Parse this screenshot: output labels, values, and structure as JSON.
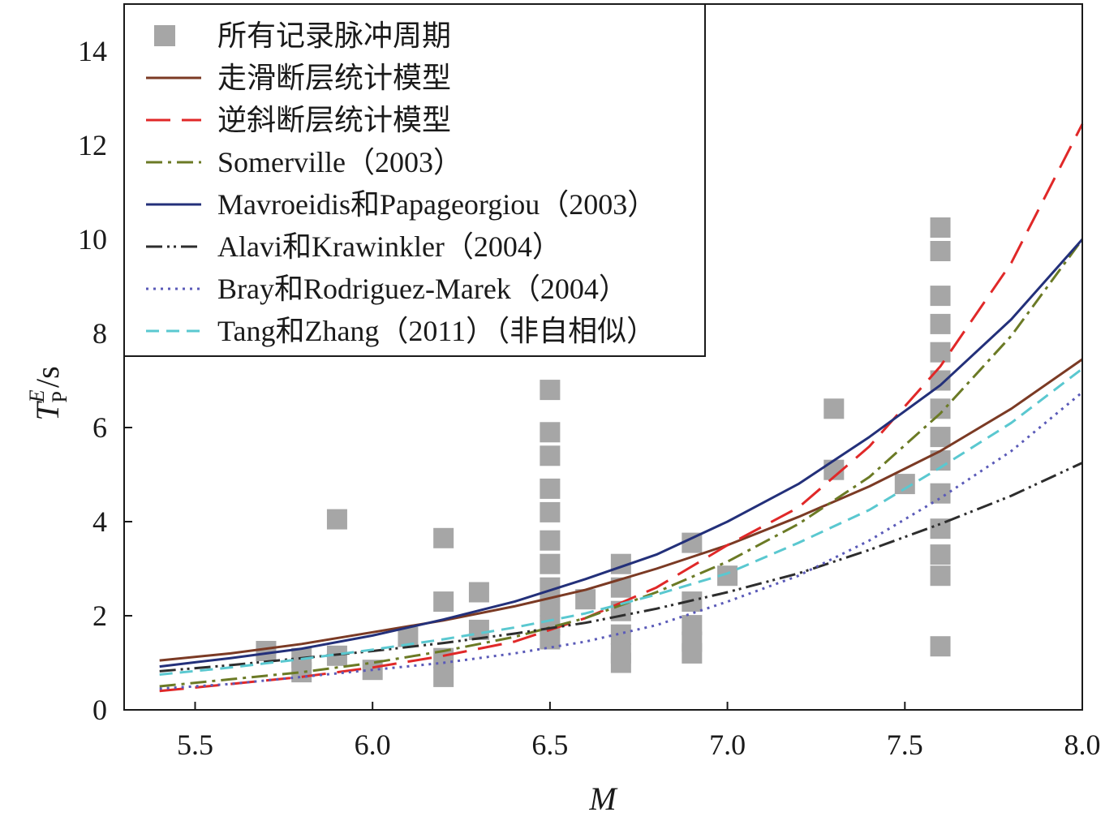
{
  "chart_data": {
    "type": "scatter",
    "xlabel": "M",
    "ylabel": {
      "main": "T",
      "superscript": "E",
      "subscript": "P",
      "unit": "/s"
    },
    "xlim": [
      5.3,
      8.0
    ],
    "ylim": [
      0,
      15
    ],
    "xticks": [
      "5.5",
      "6.0",
      "6.5",
      "7.0",
      "7.5",
      "8.0"
    ],
    "yticks": [
      "0",
      "2",
      "4",
      "6",
      "8",
      "10",
      "12",
      "14"
    ],
    "grid": false,
    "legend_position": "top-left",
    "scatter": {
      "name": "所有记录脉冲周期",
      "color": "#a6a6a6",
      "points": [
        [
          5.7,
          1.25
        ],
        [
          5.8,
          1.1
        ],
        [
          5.8,
          0.8
        ],
        [
          5.9,
          4.05
        ],
        [
          5.9,
          1.15
        ],
        [
          6.0,
          0.85
        ],
        [
          6.1,
          1.55
        ],
        [
          6.2,
          3.65
        ],
        [
          6.2,
          2.3
        ],
        [
          6.2,
          1.1
        ],
        [
          6.2,
          0.7
        ],
        [
          6.3,
          2.5
        ],
        [
          6.3,
          1.7
        ],
        [
          6.5,
          6.8
        ],
        [
          6.5,
          5.9
        ],
        [
          6.5,
          5.4
        ],
        [
          6.5,
          4.7
        ],
        [
          6.5,
          4.2
        ],
        [
          6.5,
          3.6
        ],
        [
          6.5,
          3.1
        ],
        [
          6.5,
          2.6
        ],
        [
          6.5,
          2.2
        ],
        [
          6.5,
          1.8
        ],
        [
          6.5,
          1.5
        ],
        [
          6.6,
          2.35
        ],
        [
          6.7,
          3.1
        ],
        [
          6.7,
          2.6
        ],
        [
          6.7,
          2.1
        ],
        [
          6.7,
          1.6
        ],
        [
          6.7,
          1.2
        ],
        [
          6.7,
          1.0
        ],
        [
          6.9,
          3.55
        ],
        [
          6.9,
          2.3
        ],
        [
          6.9,
          1.8
        ],
        [
          6.9,
          1.45
        ],
        [
          6.9,
          1.2
        ],
        [
          7.0,
          2.85
        ],
        [
          7.3,
          6.4
        ],
        [
          7.3,
          5.1
        ],
        [
          7.5,
          4.8
        ],
        [
          7.6,
          10.25
        ],
        [
          7.6,
          9.75
        ],
        [
          7.6,
          8.8
        ],
        [
          7.6,
          8.2
        ],
        [
          7.6,
          7.6
        ],
        [
          7.6,
          7.0
        ],
        [
          7.6,
          6.4
        ],
        [
          7.6,
          5.8
        ],
        [
          7.6,
          5.3
        ],
        [
          7.6,
          4.6
        ],
        [
          7.6,
          3.85
        ],
        [
          7.6,
          3.3
        ],
        [
          7.6,
          2.85
        ],
        [
          7.6,
          1.35
        ]
      ]
    },
    "series": [
      {
        "name": "走滑断层统计模型",
        "color": "#7b3a24",
        "dash": "",
        "width": 3,
        "x": [
          5.4,
          5.6,
          5.8,
          6.0,
          6.2,
          6.4,
          6.6,
          6.8,
          7.0,
          7.2,
          7.4,
          7.6,
          7.8,
          8.0
        ],
        "y": [
          1.05,
          1.2,
          1.4,
          1.65,
          1.9,
          2.2,
          2.55,
          3.0,
          3.5,
          4.1,
          4.75,
          5.5,
          6.4,
          7.45
        ]
      },
      {
        "name": "逆斜断层统计模型",
        "color": "#e02828",
        "dash": "30,14",
        "width": 3,
        "x": [
          5.4,
          5.6,
          5.8,
          6.0,
          6.2,
          6.4,
          6.6,
          6.8,
          7.0,
          7.2,
          7.4,
          7.6,
          7.8,
          8.0
        ],
        "y": [
          0.4,
          0.55,
          0.7,
          0.9,
          1.15,
          1.45,
          1.95,
          2.6,
          3.5,
          4.3,
          5.6,
          7.3,
          9.5,
          12.45
        ]
      },
      {
        "name": "Somerville（2003）",
        "color": "#6b7a25",
        "dash": "20,7,4,7",
        "width": 3,
        "x": [
          5.4,
          5.6,
          5.8,
          6.0,
          6.2,
          6.4,
          6.6,
          6.8,
          7.0,
          7.2,
          7.4,
          7.6,
          7.8,
          8.0
        ],
        "y": [
          0.5,
          0.65,
          0.8,
          1.0,
          1.25,
          1.55,
          1.95,
          2.5,
          3.15,
          3.95,
          4.95,
          6.3,
          7.95,
          10.0
        ]
      },
      {
        "name": "Mavroeidis和Papageorgiou（2003）",
        "color": "#23307a",
        "dash": "",
        "width": 3,
        "x": [
          5.4,
          5.6,
          5.8,
          6.0,
          6.2,
          6.4,
          6.6,
          6.8,
          7.0,
          7.2,
          7.4,
          7.6,
          7.8,
          8.0
        ],
        "y": [
          0.92,
          1.1,
          1.3,
          1.58,
          1.92,
          2.3,
          2.78,
          3.3,
          4.0,
          4.8,
          5.8,
          6.9,
          8.3,
          10.0
        ]
      },
      {
        "name": "Alavi和Krawinkler（2004）",
        "color": "#2d2d2d",
        "dash": "20,6,3,5,3,6",
        "width": 3,
        "x": [
          5.4,
          5.6,
          5.8,
          6.0,
          6.2,
          6.4,
          6.6,
          6.8,
          7.0,
          7.2,
          7.4,
          7.6,
          7.8,
          8.0
        ],
        "y": [
          0.82,
          0.95,
          1.1,
          1.25,
          1.42,
          1.62,
          1.85,
          2.15,
          2.5,
          2.9,
          3.4,
          3.95,
          4.55,
          5.25
        ]
      },
      {
        "name": "Bray和Rodriguez-Marek（2004）",
        "color": "#5a5ab8",
        "dash": "3,6",
        "width": 3,
        "x": [
          5.4,
          5.6,
          5.8,
          6.0,
          6.2,
          6.4,
          6.6,
          6.8,
          7.0,
          7.2,
          7.4,
          7.6,
          7.8,
          8.0
        ],
        "y": [
          0.45,
          0.55,
          0.7,
          0.85,
          1.0,
          1.2,
          1.45,
          1.8,
          2.3,
          2.85,
          3.6,
          4.5,
          5.5,
          6.75
        ]
      },
      {
        "name": "Tang和Zhang（2011）（非自相似）",
        "color": "#5ac8d0",
        "dash": "16,9",
        "width": 3,
        "x": [
          5.4,
          5.6,
          5.8,
          6.0,
          6.2,
          6.4,
          6.6,
          6.8,
          7.0,
          7.2,
          7.4,
          7.6,
          7.8,
          8.0
        ],
        "y": [
          0.75,
          0.9,
          1.08,
          1.28,
          1.5,
          1.75,
          2.05,
          2.45,
          2.9,
          3.55,
          4.25,
          5.15,
          6.1,
          7.25
        ]
      }
    ]
  }
}
